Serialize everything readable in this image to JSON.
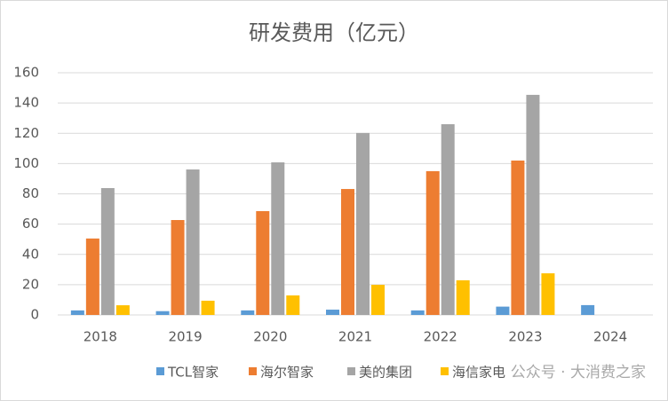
{
  "chart_data": {
    "type": "bar",
    "title": "研发费用（亿元）",
    "categories": [
      "2018",
      "2019",
      "2020",
      "2021",
      "2022",
      "2023",
      "2024"
    ],
    "series": [
      {
        "name": "TCL智家",
        "color": "#5b9bd5",
        "values": [
          3,
          2.5,
          3,
          3.5,
          3,
          5.5,
          6.5
        ]
      },
      {
        "name": "海尔智家",
        "color": "#ed7d31",
        "values": [
          50.5,
          62.7,
          68.6,
          83.2,
          95,
          102,
          null
        ]
      },
      {
        "name": "美的集团",
        "color": "#a5a5a5",
        "values": [
          83.8,
          96.1,
          100.8,
          120.2,
          126,
          145.4,
          null
        ]
      },
      {
        "name": "海信家电",
        "color": "#ffc000",
        "values": [
          6.4,
          9.4,
          12.9,
          19.9,
          22.9,
          27.5,
          null
        ]
      }
    ],
    "ylim": [
      0,
      160
    ],
    "yticks": [
      0,
      20,
      40,
      60,
      80,
      100,
      120,
      140,
      160
    ],
    "grid": true,
    "legend": "bottom",
    "watermark": "公众号 · 大消费之家"
  }
}
